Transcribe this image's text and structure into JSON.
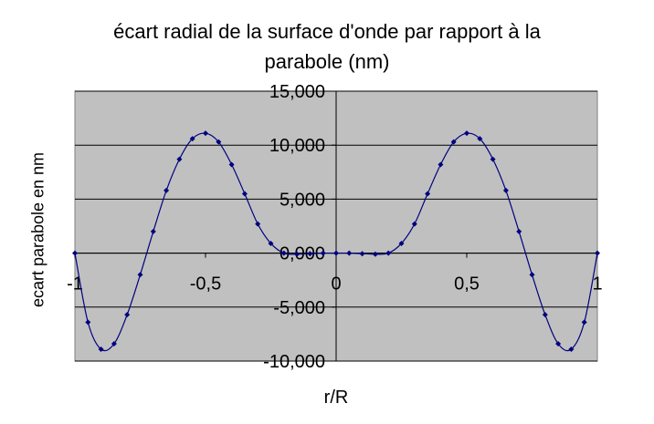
{
  "chart_data": {
    "type": "line",
    "title_line1": "écart radial de la surface d'onde par rapport à la",
    "title_line2": "parabole (nm)",
    "xlabel": "r/R",
    "ylabel": "ecart parabole en nm",
    "xlim": [
      -1,
      1
    ],
    "ylim": [
      -10,
      15
    ],
    "y_ticks": [
      15,
      10,
      5,
      0,
      -5,
      -10
    ],
    "y_tick_labels": [
      "15,000",
      "10,000",
      "5,000",
      "0,000",
      "-5,000",
      "-10,000"
    ],
    "x_ticks": [
      -1,
      -0.5,
      0,
      0.5,
      1
    ],
    "x_tick_labels": [
      "-1",
      "-0,5",
      "0",
      "0,5",
      "1"
    ],
    "grid": true,
    "background": "#c0c0c0",
    "series_color": "#000080",
    "series": [
      {
        "x": [
          -1.0,
          -0.95,
          -0.9,
          -0.85,
          -0.8,
          -0.75,
          -0.7,
          -0.65,
          -0.6,
          -0.55,
          -0.5,
          -0.45,
          -0.4,
          -0.35,
          -0.3,
          -0.25,
          -0.2,
          -0.15,
          -0.1,
          -0.05,
          0.0,
          0.05,
          0.1,
          0.15,
          0.2,
          0.25,
          0.3,
          0.35,
          0.4,
          0.45,
          0.5,
          0.55,
          0.6,
          0.65,
          0.7,
          0.75,
          0.8,
          0.85,
          0.9,
          0.95,
          1.0
        ],
        "y": [
          0.0,
          -6.4,
          -8.9,
          -8.4,
          -5.7,
          -2.0,
          2.0,
          5.8,
          8.7,
          10.6,
          11.1,
          10.3,
          8.2,
          5.5,
          2.7,
          0.9,
          0.0,
          -0.1,
          -0.05,
          0.0,
          0.0,
          0.0,
          -0.05,
          -0.1,
          0.0,
          0.9,
          2.7,
          5.5,
          8.2,
          10.3,
          11.1,
          10.6,
          8.7,
          5.8,
          2.0,
          -2.0,
          -5.7,
          -8.4,
          -8.9,
          -6.4,
          0.0
        ]
      }
    ]
  }
}
